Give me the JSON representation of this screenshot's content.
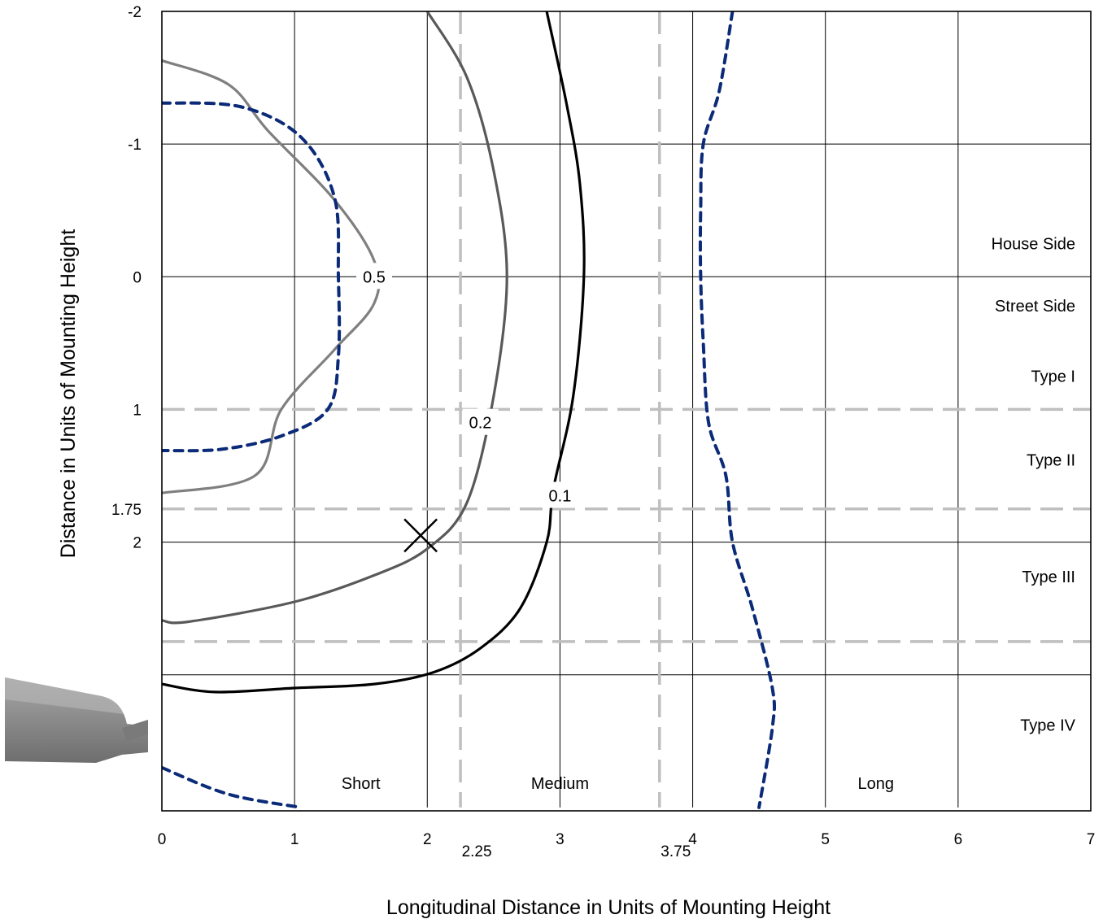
{
  "chart_data": {
    "type": "line",
    "title": "",
    "xlabel": "Longitudinal Distance in Units of Mounting Height",
    "ylabel": "Distance in Units of Mounting Height",
    "xlim": [
      0,
      7
    ],
    "ylim": [
      -2,
      4
    ],
    "y_inverted": true,
    "grid": true,
    "x_ticks": [
      {
        "value": 0,
        "label": "0"
      },
      {
        "value": 1,
        "label": "1"
      },
      {
        "value": 2,
        "label": "2"
      },
      {
        "value": 3,
        "label": "3"
      },
      {
        "value": 4,
        "label": "4"
      },
      {
        "value": 5,
        "label": "5"
      },
      {
        "value": 6,
        "label": "6"
      },
      {
        "value": 7,
        "label": "7"
      }
    ],
    "x_extra_ticks": [
      {
        "value": 2.25,
        "label": "2.25"
      },
      {
        "value": 3.75,
        "label": "3.75"
      }
    ],
    "y_ticks": [
      {
        "value": -2,
        "label": "-2"
      },
      {
        "value": -1,
        "label": "-1"
      },
      {
        "value": 0,
        "label": "0"
      },
      {
        "value": 1,
        "label": "1"
      },
      {
        "value": 1.75,
        "label": "1.75"
      },
      {
        "value": 2,
        "label": "2"
      }
    ],
    "y_gridlines": [
      -1,
      0,
      2,
      3
    ],
    "x_gridlines": [
      1,
      2,
      3,
      4,
      5,
      6
    ],
    "boundary_lines": {
      "vertical": [
        2.25,
        3.75
      ],
      "horizontal": [
        1,
        1.75,
        2.75
      ],
      "color": "#bfbfbf"
    },
    "zone_labels": [
      {
        "text": "House Side",
        "y": -0.25
      },
      {
        "text": "Street Side",
        "y": 0.22
      },
      {
        "text": "Type I",
        "y": 0.75
      },
      {
        "text": "Type II",
        "y": 1.38
      },
      {
        "text": "Type III",
        "y": 2.26
      },
      {
        "text": "Type IV",
        "y": 3.38
      }
    ],
    "range_labels": [
      {
        "text": "Short",
        "x": 1.5
      },
      {
        "text": "Medium",
        "x": 3.0
      },
      {
        "text": "Long",
        "x": 5.38
      }
    ],
    "series": [
      {
        "name": "0.5",
        "color": "#7f7f7f",
        "style": "solid",
        "label_at": [
          1.6,
          0.0
        ],
        "points": [
          [
            0,
            -1.63
          ],
          [
            0.5,
            -1.45
          ],
          [
            0.8,
            -1.1
          ],
          [
            1.3,
            -0.58
          ],
          [
            1.6,
            -0.12
          ],
          [
            1.6,
            0.2
          ],
          [
            1.3,
            0.55
          ],
          [
            0.9,
            1.0
          ],
          [
            0.7,
            1.5
          ],
          [
            0,
            1.63
          ]
        ]
      },
      {
        "name": "0.2",
        "color": "#595959",
        "style": "solid",
        "label_at": [
          2.4,
          1.1
        ],
        "points": [
          [
            2.0,
            -2.0
          ],
          [
            2.3,
            -1.5
          ],
          [
            2.5,
            -0.8
          ],
          [
            2.6,
            0.0
          ],
          [
            2.5,
            0.9
          ],
          [
            2.3,
            1.7
          ],
          [
            2.0,
            2.05
          ],
          [
            1.6,
            2.25
          ],
          [
            1.0,
            2.45
          ],
          [
            0.2,
            2.6
          ],
          [
            0,
            2.59
          ]
        ]
      },
      {
        "name": "0.1",
        "color": "#000000",
        "style": "solid",
        "label_at": [
          3.0,
          1.65
        ],
        "points": [
          [
            2.9,
            -2.0
          ],
          [
            3.05,
            -1.3
          ],
          [
            3.15,
            -0.7
          ],
          [
            3.18,
            0.0
          ],
          [
            3.1,
            0.9
          ],
          [
            2.95,
            1.6
          ],
          [
            2.9,
            2.0
          ],
          [
            2.7,
            2.5
          ],
          [
            2.4,
            2.8
          ],
          [
            2.05,
            2.98
          ],
          [
            1.6,
            3.07
          ],
          [
            1.0,
            3.1
          ],
          [
            0.4,
            3.13
          ],
          [
            0,
            3.07
          ]
        ]
      },
      {
        "name": "",
        "color": "#0b2a78",
        "style": "dashed",
        "points": [
          [
            0,
            -1.31
          ],
          [
            0.6,
            -1.28
          ],
          [
            1.05,
            -1.05
          ],
          [
            1.3,
            -0.6
          ],
          [
            1.33,
            0.0
          ],
          [
            1.33,
            0.6
          ],
          [
            1.25,
            1.0
          ],
          [
            0.9,
            1.2
          ],
          [
            0.45,
            1.3
          ],
          [
            0,
            1.31
          ]
        ]
      },
      {
        "name": "",
        "color": "#0b2a78",
        "style": "dashed",
        "points": [
          [
            4.3,
            -2.0
          ],
          [
            4.2,
            -1.4
          ],
          [
            4.08,
            -1.0
          ],
          [
            4.06,
            -0.5
          ],
          [
            4.06,
            0.0
          ],
          [
            4.08,
            0.5
          ],
          [
            4.12,
            1.1
          ],
          [
            4.25,
            1.5
          ],
          [
            4.3,
            2.0
          ],
          [
            4.45,
            2.5
          ],
          [
            4.6,
            3.1
          ],
          [
            4.6,
            3.4
          ],
          [
            4.5,
            4.0
          ]
        ]
      },
      {
        "name": "",
        "color": "#0b2a78",
        "style": "dashed",
        "points": [
          [
            0,
            3.7
          ],
          [
            0.5,
            3.9
          ],
          [
            1.05,
            4.0
          ]
        ]
      }
    ],
    "markers": [
      {
        "shape": "x",
        "x": 1.95,
        "y": 1.95,
        "label": ""
      }
    ]
  }
}
